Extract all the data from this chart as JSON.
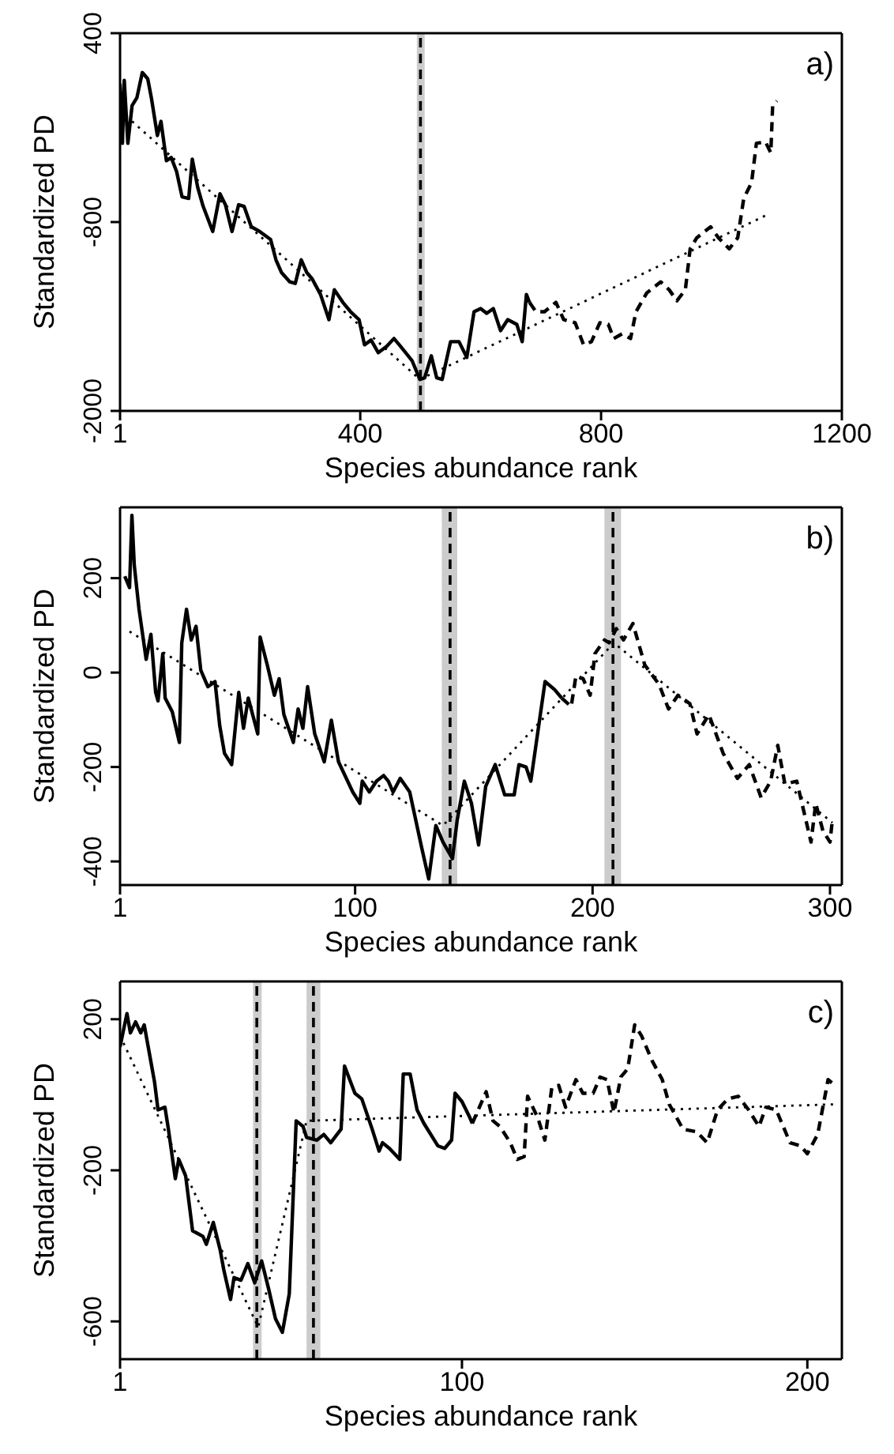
{
  "chart_data": [
    {
      "type": "line",
      "xlabel": "Species abundance rank",
      "ylabel": "Standardized PD",
      "annotations": [
        "a)"
      ],
      "xlim": [
        1,
        1200
      ],
      "xticks": [
        1,
        400,
        800,
        1200
      ],
      "ylim": [
        -2000,
        400
      ],
      "yticks": [
        400,
        -800,
        -2000
      ],
      "ref_lines": [
        {
          "axis": "x",
          "value": 500,
          "color": "#000000",
          "line_style": "dashed"
        }
      ],
      "bands": [
        {
          "axis": "x",
          "from": 494,
          "to": 507,
          "color": "#cccccc"
        }
      ],
      "series": [
        {
          "color": "#000000",
          "line_style": "solid",
          "x": [
            1,
            5,
            8,
            14,
            21,
            29,
            38,
            47,
            53,
            63,
            69,
            78,
            86,
            95,
            104,
            115,
            121,
            130,
            139,
            155,
            167,
            176,
            187,
            198,
            207,
            219,
            233,
            251,
            260,
            269,
            283,
            292,
            302,
            311,
            320,
            334,
            348,
            357,
            371,
            384,
            398,
            407,
            418,
            430,
            444,
            456,
            467,
            486,
            499,
            507,
            518,
            527,
            536,
            550,
            564,
            577,
            589,
            600,
            610,
            621,
            633,
            645,
            660,
            669,
            676,
            681
          ],
          "values": [
            80,
            -300,
            100,
            -300,
            -60,
            -10,
            150,
            110,
            -10,
            -250,
            -160,
            -410,
            -390,
            -480,
            -640,
            -650,
            -400,
            -580,
            -700,
            -860,
            -620,
            -690,
            -860,
            -690,
            -700,
            -830,
            -860,
            -910,
            -1040,
            -1120,
            -1180,
            -1190,
            -1040,
            -1120,
            -1160,
            -1260,
            -1420,
            -1230,
            -1310,
            -1370,
            -1420,
            -1580,
            -1550,
            -1630,
            -1590,
            -1540,
            -1590,
            -1680,
            -1800,
            -1790,
            -1650,
            -1790,
            -1800,
            -1560,
            -1560,
            -1660,
            -1370,
            -1350,
            -1380,
            -1350,
            -1490,
            -1420,
            -1450,
            -1560,
            -1260,
            -1310
          ]
        },
        {
          "color": "#000000",
          "line_style": "dashed",
          "x": [
            681,
            692,
            706,
            725,
            738,
            757,
            771,
            784,
            798,
            812,
            821,
            835,
            849,
            858,
            876,
            899,
            913,
            926,
            940,
            948,
            959,
            982,
            995,
            1013,
            1027,
            1037,
            1050,
            1058,
            1073,
            1082,
            1085,
            1092
          ],
          "values": [
            -1310,
            -1370,
            -1370,
            -1310,
            -1420,
            -1440,
            -1580,
            -1560,
            -1440,
            -1450,
            -1540,
            -1510,
            -1540,
            -1370,
            -1250,
            -1180,
            -1230,
            -1300,
            -1230,
            -970,
            -900,
            -830,
            -900,
            -970,
            -900,
            -650,
            -550,
            -300,
            -290,
            -360,
            -60,
            -30
          ]
        },
        {
          "color": "#000000",
          "line_style": "dotted",
          "x": [
            21,
            499,
            1078
          ],
          "values": [
            -160,
            -1800,
            -750
          ]
        }
      ]
    },
    {
      "type": "line",
      "xlabel": "Species abundance rank",
      "ylabel": "Standardized PD",
      "annotations": [
        "b)"
      ],
      "xlim": [
        1,
        305
      ],
      "xticks": [
        1,
        100,
        200,
        300
      ],
      "ylim": [
        -450,
        350
      ],
      "yticks": [
        -400,
        -200,
        0,
        200
      ],
      "ref_lines": [
        {
          "axis": "x",
          "value": 140,
          "color": "#000000",
          "line_style": "dashed"
        },
        {
          "axis": "x",
          "value": 208.6,
          "color": "#000000",
          "line_style": "dashed"
        }
      ],
      "bands": [
        {
          "axis": "x",
          "from": 136.5,
          "to": 143,
          "color": "#cccccc"
        },
        {
          "axis": "x",
          "from": 205,
          "to": 212,
          "color": "#cccccc"
        }
      ],
      "series": [
        {
          "color": "#000000",
          "line_style": "solid",
          "x": [
            3,
            5,
            6,
            7,
            9,
            12,
            14,
            16,
            17,
            19,
            20,
            23,
            26,
            27,
            29,
            31,
            33,
            35,
            38,
            41,
            43,
            45,
            48,
            51,
            53,
            55,
            59,
            60,
            63,
            66,
            68,
            70,
            74,
            76,
            78,
            80,
            83,
            87,
            90,
            93,
            99,
            102,
            103,
            106,
            109,
            112,
            114,
            116,
            119,
            123,
            128,
            131,
            134,
            137,
            141,
            143,
            146,
            149,
            152,
            155,
            159,
            163,
            167,
            169,
            172,
            174,
            178,
            180,
            184,
            187
          ],
          "values": [
            204,
            180,
            333,
            227,
            134,
            28,
            81,
            -42,
            -60,
            40,
            -54,
            -83,
            -148,
            63,
            134,
            69,
            98,
            5,
            -30,
            -19,
            -113,
            -171,
            -195,
            -42,
            -118,
            -54,
            -130,
            75,
            16,
            -48,
            -13,
            -89,
            -148,
            -77,
            -118,
            -30,
            -130,
            -189,
            -101,
            -189,
            -253,
            -277,
            -230,
            -253,
            -230,
            -218,
            -230,
            -253,
            -224,
            -253,
            -370,
            -437,
            -324,
            -359,
            -394,
            -312,
            -230,
            -277,
            -365,
            -241,
            -195,
            -259,
            -259,
            -195,
            -200,
            -230,
            -89,
            -19,
            -36,
            -54
          ]
        },
        {
          "color": "#000000",
          "line_style": "dashed",
          "x": [
            187,
            191,
            193,
            196,
            199,
            201,
            205,
            207,
            210,
            213,
            217,
            222,
            228,
            232,
            236,
            241,
            244,
            249,
            255,
            261,
            266,
            271,
            275,
            278,
            281,
            286,
            292,
            294,
            297,
            300,
            301
          ],
          "values": [
            -54,
            -72,
            -7,
            -13,
            -48,
            40,
            69,
            63,
            93,
            69,
            104,
            16,
            -25,
            -77,
            -48,
            -66,
            -130,
            -89,
            -171,
            -224,
            -195,
            -265,
            -230,
            -154,
            -236,
            -230,
            -359,
            -277,
            -335,
            -359,
            -312
          ]
        },
        {
          "color": "#000000",
          "line_style": "dotted",
          "x": [
            5,
            137,
            209,
            301
          ],
          "values": [
            87,
            -324,
            63,
            -318
          ]
        }
      ]
    },
    {
      "type": "line",
      "xlabel": "Species abundance rank",
      "ylabel": "Standardized PD",
      "annotations": [
        "c)"
      ],
      "xlim": [
        1,
        210
      ],
      "xticks": [
        1,
        100,
        200
      ],
      "ylim": [
        -700,
        300
      ],
      "yticks": [
        -600,
        -200,
        200
      ],
      "ref_lines": [
        {
          "axis": "x",
          "value": 40.6,
          "color": "#000000",
          "line_style": "dashed"
        },
        {
          "axis": "x",
          "value": 57,
          "color": "#000000",
          "line_style": "dashed"
        }
      ],
      "bands": [
        {
          "axis": "x",
          "from": 39.5,
          "to": 42,
          "color": "#cccccc"
        },
        {
          "axis": "x",
          "from": 55,
          "to": 59,
          "color": "#cccccc"
        }
      ],
      "series": [
        {
          "color": "#000000",
          "line_style": "solid",
          "x": [
            1,
            2,
            3,
            4,
            5.5,
            7,
            8,
            10,
            11,
            12,
            14,
            15,
            17,
            18,
            20,
            22,
            25,
            26,
            28,
            30,
            31,
            33,
            34,
            36,
            38,
            40,
            42,
            44,
            46,
            48,
            50,
            52,
            54,
            55,
            58,
            60,
            62,
            65,
            66,
            69,
            71,
            74,
            76,
            77,
            79,
            82,
            83,
            85,
            87,
            89,
            93,
            95,
            97,
            98,
            100,
            102,
            103
          ],
          "values": [
            127,
            171,
            215,
            164,
            193,
            164,
            185,
            84,
            33,
            -40,
            -33,
            -91,
            -222,
            -171,
            -215,
            -360,
            -375,
            -396,
            -338,
            -411,
            -462,
            -542,
            -484,
            -491,
            -447,
            -498,
            -440,
            -513,
            -593,
            -629,
            -527,
            -69,
            -84,
            -113,
            -120,
            -105,
            -127,
            -91,
            76,
            4,
            -11,
            -91,
            -149,
            -127,
            -142,
            -171,
            55,
            55,
            -40,
            -76,
            -135,
            -142,
            -120,
            4,
            -18,
            -55,
            -76
          ]
        },
        {
          "color": "#000000",
          "line_style": "dashed",
          "x": [
            103,
            107,
            109,
            111,
            114,
            116,
            118,
            119,
            122,
            124,
            126,
            128,
            130,
            133,
            135,
            138,
            140,
            142,
            144,
            146,
            148,
            150,
            152,
            155,
            158,
            160,
            164,
            168,
            171,
            174,
            177,
            180,
            183,
            186,
            188,
            191,
            195,
            198,
            200,
            203,
            206,
            208
          ],
          "values": [
            -76,
            8,
            -69,
            -84,
            -127,
            -171,
            -164,
            -4,
            -62,
            -120,
            18,
            25,
            -33,
            40,
            4,
            4,
            47,
            40,
            -47,
            47,
            69,
            185,
            156,
            91,
            40,
            -25,
            -91,
            -98,
            -127,
            -40,
            -11,
            -4,
            -40,
            -84,
            -33,
            -40,
            -127,
            -135,
            -156,
            -105,
            40,
            25
          ]
        },
        {
          "color": "#000000",
          "line_style": "dotted",
          "x": [
            1,
            41,
            55,
            209
          ],
          "values": [
            156,
            -615,
            -69,
            -25
          ]
        }
      ]
    }
  ]
}
